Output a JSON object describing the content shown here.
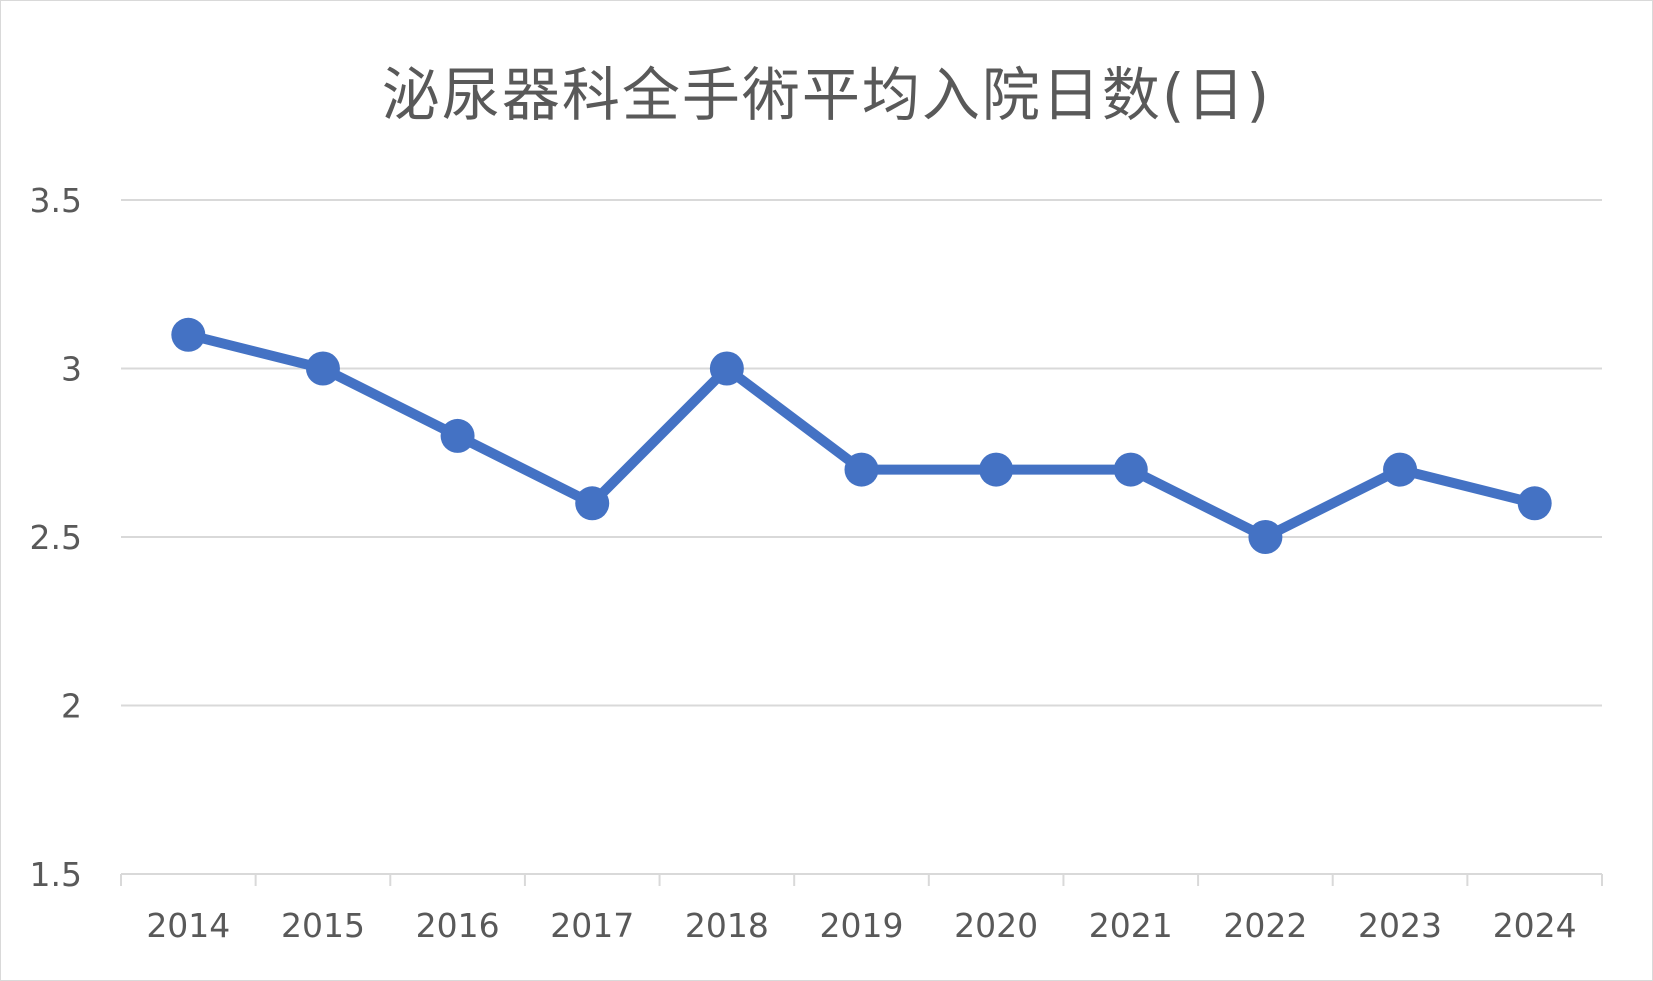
{
  "chart_data": {
    "type": "line",
    "title": "泌尿器科全手術平均入院日数(日)",
    "xlabel": "",
    "ylabel": "",
    "categories": [
      "2014",
      "2015",
      "2016",
      "2017",
      "2018",
      "2019",
      "2020",
      "2021",
      "2022",
      "2023",
      "2024"
    ],
    "series": [
      {
        "values": [
          3.1,
          3.0,
          2.8,
          2.6,
          3.0,
          2.7,
          2.7,
          2.7,
          2.5,
          2.7,
          2.6
        ]
      }
    ],
    "ylim": [
      1.5,
      3.5
    ],
    "yticks": [
      "1.5",
      "2",
      "2.5",
      "3",
      "3.5"
    ],
    "grid": true,
    "legend": "none",
    "colors": {
      "series": "#4472c4",
      "grid": "#d9d9d9",
      "text": "#595959"
    }
  }
}
